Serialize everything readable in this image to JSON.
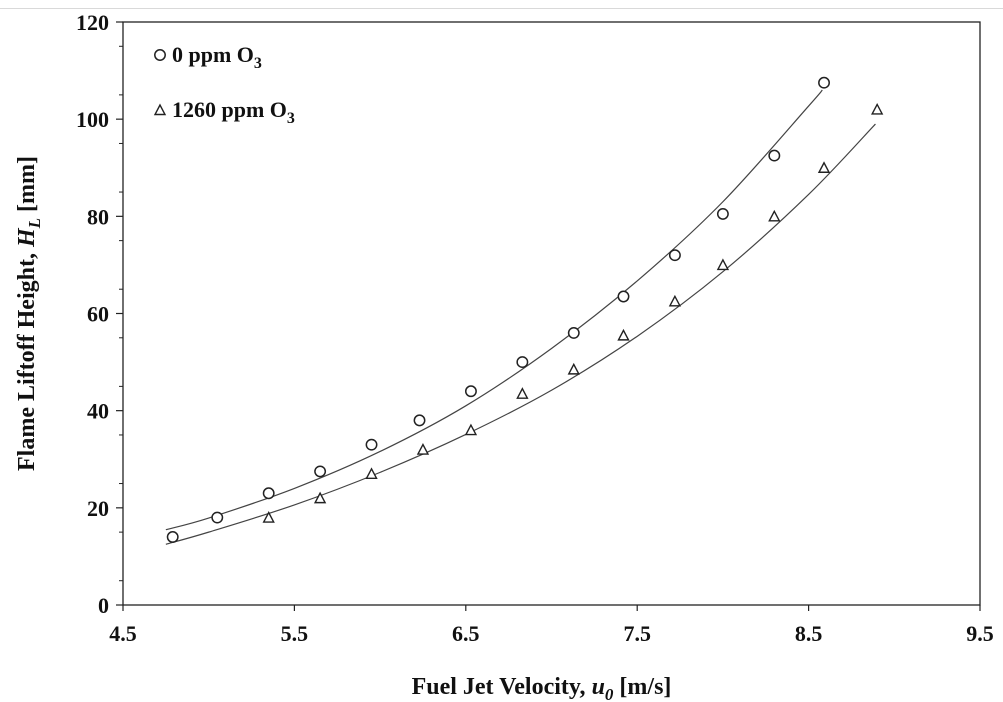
{
  "chart_data": {
    "type": "scatter",
    "title": "",
    "xlabel": {
      "main": "Fuel Jet Velocity, ",
      "var": "u",
      "sub": "0",
      "unit": " [m/s]"
    },
    "ylabel": {
      "main": "Flame Liftoff Height, ",
      "var": "H",
      "sub": "L",
      "unit": " [mm]"
    },
    "xlim": [
      4.5,
      9.5
    ],
    "ylim": [
      0,
      120
    ],
    "xticks": [
      "4.5",
      "5.5",
      "6.5",
      "7.5",
      "8.5",
      "9.5"
    ],
    "yticks": [
      "0",
      "20",
      "40",
      "60",
      "80",
      "100",
      "120"
    ],
    "grid": false,
    "legend_position": "top-left",
    "series": [
      {
        "name": "0 ppm O3",
        "legend_main": "0 ppm O",
        "legend_sub": "3",
        "marker": "circle",
        "x": [
          4.79,
          5.05,
          5.35,
          5.65,
          5.95,
          6.23,
          6.53,
          6.83,
          7.13,
          7.42,
          7.72,
          8.0,
          8.3,
          8.59
        ],
        "y": [
          14,
          18,
          23,
          27.5,
          33,
          38,
          44,
          50,
          56,
          63.5,
          72,
          80.5,
          92.5,
          107.5
        ],
        "fit": [
          [
            4.75,
            15.5
          ],
          [
            5.0,
            17.9
          ],
          [
            5.5,
            24.0
          ],
          [
            6.0,
            31.6
          ],
          [
            6.5,
            41.0
          ],
          [
            7.0,
            52.8
          ],
          [
            7.5,
            66.7
          ],
          [
            8.0,
            83.0
          ],
          [
            8.5,
            102.7
          ],
          [
            8.58,
            106.0
          ]
        ]
      },
      {
        "name": "1260 ppm O3",
        "legend_main": "1260 ppm O",
        "legend_sub": "3",
        "marker": "triangle",
        "x": [
          5.35,
          5.65,
          5.95,
          6.25,
          6.53,
          6.83,
          7.13,
          7.42,
          7.72,
          8.0,
          8.3,
          8.59,
          8.9
        ],
        "y": [
          18,
          22,
          27,
          32,
          36,
          43.5,
          48.5,
          55.5,
          62.5,
          70,
          80,
          90,
          102
        ],
        "fit": [
          [
            4.75,
            12.5
          ],
          [
            5.0,
            15.0
          ],
          [
            5.5,
            20.6
          ],
          [
            6.0,
            27.3
          ],
          [
            6.5,
            35.1
          ],
          [
            7.0,
            44.2
          ],
          [
            7.5,
            55.3
          ],
          [
            8.0,
            68.6
          ],
          [
            8.5,
            84.5
          ],
          [
            8.89,
            99.0
          ]
        ]
      }
    ]
  }
}
